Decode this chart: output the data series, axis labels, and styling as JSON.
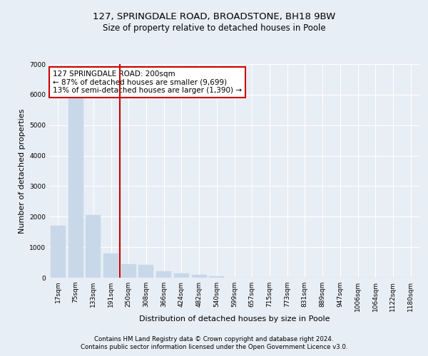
{
  "title1": "127, SPRINGDALE ROAD, BROADSTONE, BH18 9BW",
  "title2": "Size of property relative to detached houses in Poole",
  "xlabel": "Distribution of detached houses by size in Poole",
  "ylabel": "Number of detached properties",
  "footnote1": "Contains HM Land Registry data © Crown copyright and database right 2024.",
  "footnote2": "Contains public sector information licensed under the Open Government Licence v3.0.",
  "annotation_line1": "127 SPRINGDALE ROAD: 200sqm",
  "annotation_line2": "← 87% of detached houses are smaller (9,699)",
  "annotation_line3": "13% of semi-detached houses are larger (1,390) →",
  "bar_color": "#c8d8e8",
  "bar_edge_color": "#c8d8e8",
  "vline_color": "#cc0000",
  "vline_x": 3.5,
  "categories": [
    "17sqm",
    "75sqm",
    "133sqm",
    "191sqm",
    "250sqm",
    "308sqm",
    "366sqm",
    "424sqm",
    "482sqm",
    "540sqm",
    "599sqm",
    "657sqm",
    "715sqm",
    "773sqm",
    "831sqm",
    "889sqm",
    "947sqm",
    "1006sqm",
    "1064sqm",
    "1122sqm",
    "1180sqm"
  ],
  "values": [
    1700,
    5900,
    2050,
    800,
    450,
    420,
    200,
    130,
    100,
    55,
    10,
    5,
    3,
    2,
    1,
    1,
    0,
    0,
    0,
    0,
    0
  ],
  "ylim": [
    0,
    7000
  ],
  "yticks": [
    0,
    1000,
    2000,
    3000,
    4000,
    5000,
    6000,
    7000
  ],
  "background_color": "#e8eef5",
  "plot_bg_color": "#e8eef5",
  "grid_color": "#ffffff",
  "title1_fontsize": 9.5,
  "title2_fontsize": 8.5,
  "annotation_fontsize": 7.5,
  "tick_fontsize": 6.5,
  "ylabel_fontsize": 8,
  "xlabel_fontsize": 8,
  "footnote_fontsize": 6.2
}
